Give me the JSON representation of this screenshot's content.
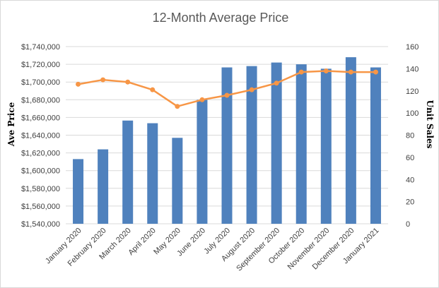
{
  "chart_data": {
    "type": "bar",
    "title": "12-Month Average Price",
    "categories": [
      "January 2020",
      "February 2020",
      "March 2020",
      "April 2020",
      "May 2020",
      "June 2020",
      "July 2020",
      "August 2020",
      "September 2020",
      "October 2020",
      "November 2020",
      "December 2020",
      "January 2021"
    ],
    "ylabel": "Ave Price",
    "y2label": "Unit Sales",
    "ylim": [
      1540000,
      1740000
    ],
    "y2lim": [
      0,
      160
    ],
    "yticks": [
      "$1,540,000",
      "$1,560,000",
      "$1,580,000",
      "$1,600,000",
      "$1,620,000",
      "$1,640,000",
      "$1,660,000",
      "$1,680,000",
      "$1,700,000",
      "$1,720,000",
      "$1,740,000"
    ],
    "y2ticks": [
      "0",
      "20",
      "40",
      "60",
      "80",
      "100",
      "120",
      "140",
      "160"
    ],
    "grid": true,
    "series": [
      {
        "type": "bar",
        "axis": "left",
        "color": "#4f81bd",
        "values": [
          1613000,
          1624000,
          1656500,
          1653500,
          1637000,
          1680000,
          1716500,
          1718000,
          1722000,
          1720000,
          1715000,
          1728000,
          1716500
        ]
      },
      {
        "type": "line",
        "axis": "right",
        "color": "#f79646",
        "values": [
          126,
          130,
          128,
          121,
          106,
          112,
          116,
          121,
          127,
          137,
          138,
          137,
          137
        ]
      }
    ]
  }
}
